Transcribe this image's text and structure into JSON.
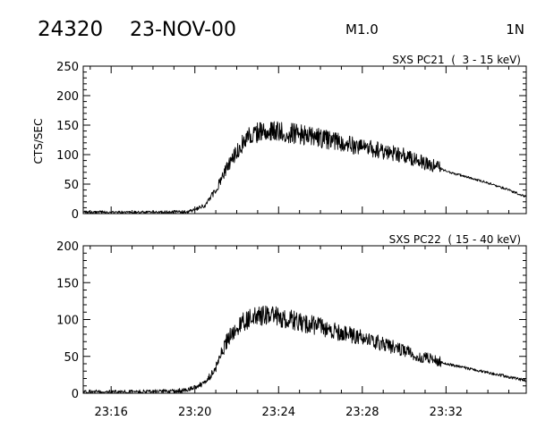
{
  "header": {
    "event_number": "24320",
    "date": "23-NOV-00",
    "flare_class": "M1.0",
    "location": "1N"
  },
  "chart_data": [
    {
      "type": "line",
      "title": "SXS PC21  (  3 - 15 keV)",
      "xlabel": "",
      "ylabel": "CTS/SEC",
      "x_unit": "UT (HH:MM)",
      "xlim": [
        "23:14:40",
        "23:35:50"
      ],
      "x_ticks": [
        "23:16",
        "23:20",
        "23:24",
        "23:28",
        "23:32"
      ],
      "ylim": [
        0,
        250
      ],
      "y_ticks": [
        0,
        50,
        100,
        150,
        200,
        250
      ],
      "grid": false,
      "line_color": "#000000",
      "series": [
        {
          "x": [
            "23:14:40",
            "23:16:00",
            "23:18:00",
            "23:19:30",
            "23:20:00",
            "23:20:30",
            "23:21:00",
            "23:21:30",
            "23:22:00",
            "23:22:30",
            "23:23:00",
            "23:23:30",
            "23:24:00",
            "23:25:00",
            "23:26:00",
            "23:27:00",
            "23:28:00",
            "23:29:00",
            "23:30:00",
            "23:31:00",
            "23:31:30",
            "23:32:00",
            "23:33:00",
            "23:34:00",
            "23:35:00",
            "23:35:50"
          ],
          "values": [
            2,
            2,
            2,
            3,
            6,
            14,
            40,
            75,
            105,
            130,
            138,
            140,
            138,
            135,
            128,
            120,
            113,
            106,
            98,
            86,
            80,
            72,
            62,
            52,
            40,
            28
          ]
        }
      ]
    },
    {
      "type": "line",
      "title": "SXS PC22  ( 15 - 40 keV)",
      "xlabel": "",
      "ylabel": "",
      "x_unit": "UT (HH:MM)",
      "xlim": [
        "23:14:40",
        "23:35:50"
      ],
      "x_ticks": [
        "23:16",
        "23:20",
        "23:24",
        "23:28",
        "23:32"
      ],
      "ylim": [
        0,
        200
      ],
      "y_ticks": [
        0,
        50,
        100,
        150,
        200
      ],
      "grid": false,
      "line_color": "#000000",
      "series": [
        {
          "x": [
            "23:14:40",
            "23:16:00",
            "23:18:00",
            "23:19:30",
            "23:20:00",
            "23:20:30",
            "23:21:00",
            "23:21:30",
            "23:22:00",
            "23:22:30",
            "23:23:00",
            "23:23:30",
            "23:24:00",
            "23:25:00",
            "23:26:00",
            "23:27:00",
            "23:28:00",
            "23:29:00",
            "23:30:00",
            "23:31:00",
            "23:31:30",
            "23:32:00",
            "23:33:00",
            "23:34:00",
            "23:35:00",
            "23:35:50"
          ],
          "values": [
            2,
            2,
            2,
            4,
            8,
            14,
            35,
            70,
            90,
            100,
            105,
            105,
            103,
            97,
            90,
            82,
            75,
            67,
            58,
            48,
            45,
            40,
            34,
            28,
            22,
            17
          ]
        }
      ]
    }
  ]
}
